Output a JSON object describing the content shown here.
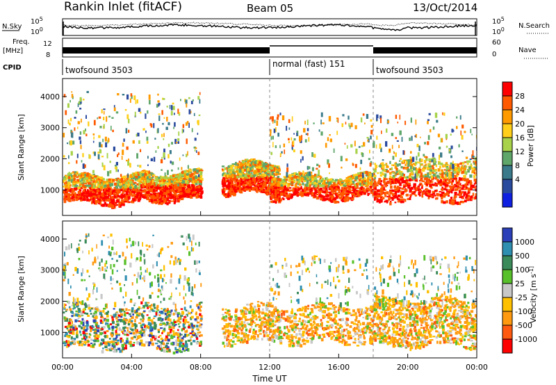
{
  "header": {
    "title": "Rankin Inlet (fitACF)",
    "beam": "Beam 05",
    "date": "13/Oct/2014"
  },
  "labels": {
    "nsky": "N.Sky",
    "nsearch": "N.Search",
    "freq_line1": "Freq.",
    "freq_line2": "[MHz]",
    "nave": "Nave",
    "cpid": "CPID",
    "sky_ticks": [
      "10^5",
      "10^0"
    ],
    "search_ticks": [
      "10^5",
      "10^0"
    ],
    "freq_ticks": [
      "12",
      "8"
    ],
    "nave_ticks": [
      "60",
      "0"
    ],
    "xlabel": "Time UT"
  },
  "cpid_segments": [
    {
      "label": "twofsound 3503",
      "start_h": 0,
      "end_h": 12
    },
    {
      "label": "normal (fast) 151",
      "start_h": 12,
      "end_h": 18
    },
    {
      "label": "twofsound 3503",
      "start_h": 18,
      "end_h": 24
    }
  ],
  "chart_data": [
    {
      "type": "heatmap",
      "panel": "power",
      "x_ticks": [
        "00:00",
        "04:00",
        "08:00",
        "12:00",
        "16:00",
        "20:00",
        "00:00"
      ],
      "xlim_hours": [
        0,
        24
      ],
      "ylabel": "Slant Range [km]",
      "ylim": [
        180,
        4580
      ],
      "y_ticks": [
        1000,
        2000,
        3000,
        4000
      ],
      "colorbar": {
        "label": "Power [dB]",
        "ticks": [
          "28",
          "24",
          "20",
          "16",
          "12",
          "8",
          "4"
        ],
        "colors": [
          "#ff0000",
          "#ff5a00",
          "#ff9a00",
          "#ffcf1a",
          "#a8d24a",
          "#5fa66a",
          "#3a7a8a",
          "#2a4a9e",
          "#1020e0"
        ]
      },
      "echo_bands": [
        {
          "t0": 0.0,
          "t1": 4.5,
          "r0": 600,
          "r1": 1500,
          "level": "high"
        },
        {
          "t0": 4.5,
          "t1": 8.0,
          "r0": 700,
          "r1": 1600,
          "level": "high"
        },
        {
          "t0": 9.0,
          "t1": 12.5,
          "r0": 900,
          "r1": 1900,
          "level": "high"
        },
        {
          "t0": 12.0,
          "t1": 18.0,
          "r0": 750,
          "r1": 1500,
          "level": "high"
        },
        {
          "t0": 18.0,
          "t1": 24.0,
          "r0": 700,
          "r1": 2000,
          "level": "high"
        },
        {
          "t0": 0.0,
          "t1": 8.0,
          "r0": 1500,
          "r1": 4200,
          "level": "sparse"
        },
        {
          "t0": 12.0,
          "t1": 24.0,
          "r0": 1500,
          "r1": 3500,
          "level": "sparse"
        }
      ]
    },
    {
      "type": "heatmap",
      "panel": "velocity",
      "x_ticks": [
        "00:00",
        "04:00",
        "08:00",
        "12:00",
        "16:00",
        "20:00",
        "00:00"
      ],
      "xlim_hours": [
        0,
        24
      ],
      "ylabel": "Slant Range [km]",
      "ylim": [
        180,
        4580
      ],
      "y_ticks": [
        1000,
        2000,
        3000,
        4000
      ],
      "colorbar": {
        "label": "Velocity [m s^-1]",
        "ticks": [
          "1000",
          "500",
          "100",
          "25",
          "-25",
          "-100",
          "-500",
          "-1000"
        ],
        "colors": [
          "#2a3fb8",
          "#2f8fb0",
          "#3a8a5a",
          "#58c02a",
          "#c8c8c8",
          "#ffc000",
          "#ff9a10",
          "#ff5a10",
          "#ff0000"
        ]
      },
      "echo_bands": [
        {
          "t0": 0.0,
          "t1": 8.0,
          "r0": 500,
          "r1": 1900,
          "level": "mixed"
        },
        {
          "t0": 9.0,
          "t1": 18.0,
          "r0": 700,
          "r1": 1900,
          "level": "orange"
        },
        {
          "t0": 18.0,
          "t1": 24.0,
          "r0": 600,
          "r1": 2100,
          "level": "orange"
        },
        {
          "t0": 0.0,
          "t1": 8.0,
          "r0": 1900,
          "r1": 4200,
          "level": "sparse"
        },
        {
          "t0": 12.0,
          "t1": 24.0,
          "r0": 1900,
          "r1": 3500,
          "level": "sparse"
        }
      ]
    }
  ]
}
